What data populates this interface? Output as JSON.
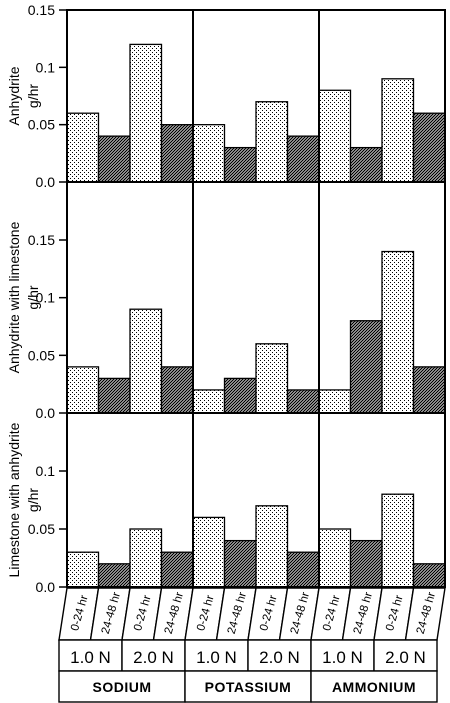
{
  "chart_data": {
    "type": "bar",
    "ylabel_unit": "g/hr",
    "panels": [
      {
        "ylabel": "Anhydrite",
        "ylim": [
          0,
          0.15
        ],
        "yticks": [
          "0.0",
          "0.05",
          "0.1",
          "0.15"
        ],
        "values": [
          0.06,
          0.04,
          0.12,
          0.05,
          0.05,
          0.03,
          0.07,
          0.04,
          0.08,
          0.03,
          0.09,
          0.06
        ]
      },
      {
        "ylabel": "Anhydrite with limestone",
        "ylim": [
          0,
          0.15
        ],
        "yticks": [
          "0.0",
          "0.05",
          "0.1",
          "0.15"
        ],
        "values": [
          0.04,
          0.03,
          0.09,
          0.04,
          0.02,
          0.03,
          0.06,
          0.02,
          0.02,
          0.08,
          0.14,
          0.04
        ]
      },
      {
        "ylabel": "Limestone with anhydrite",
        "ylim": [
          0,
          0.15
        ],
        "yticks": [
          "0.0",
          "0.05",
          "0.1"
        ],
        "values": [
          0.03,
          0.02,
          0.05,
          0.03,
          0.06,
          0.04,
          0.07,
          0.03,
          0.05,
          0.04,
          0.08,
          0.02
        ]
      }
    ],
    "time_labels": [
      "0-24 hr",
      "24-48 hr",
      "0-24 hr",
      "24-48 hr",
      "0-24 hr",
      "24-48 hr",
      "0-24 hr",
      "24-48 hr",
      "0-24 hr",
      "24-48 hr",
      "0-24 hr",
      "24-48 hr"
    ],
    "concentration_labels": [
      "1.0 N",
      "2.0 N",
      "1.0 N",
      "2.0 N",
      "1.0 N",
      "2.0 N"
    ],
    "groups": [
      "SODIUM",
      "POTASSIUM",
      "AMMONIUM"
    ],
    "fill_pattern": [
      "light",
      "dark",
      "light",
      "dark",
      "light",
      "dark",
      "light",
      "dark",
      "light",
      "dark",
      "light",
      "dark"
    ]
  }
}
